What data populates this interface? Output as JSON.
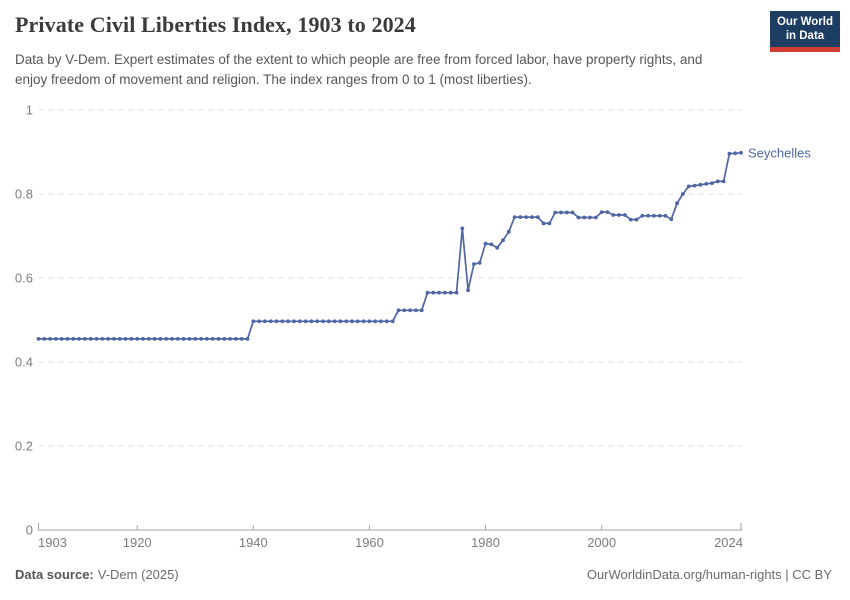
{
  "header": {
    "title": "Private Civil Liberties Index, 1903 to 2024",
    "subtitle": "Data by V-Dem. Expert estimates of the extent to which people are free from forced labor, have property rights, and enjoy freedom of movement and religion. The index ranges from 0 to 1 (most liberties)."
  },
  "logo": {
    "line1": "Our World",
    "line2": "in Data",
    "bg_color": "#1d3d63",
    "accent_color": "#d13d33"
  },
  "footer": {
    "source_label": "Data source:",
    "source_value": "V-Dem (2025)",
    "credit": "OurWorldinData.org/human-rights | CC BY"
  },
  "chart_data": {
    "type": "line",
    "title": "Private Civil Liberties Index, 1903 to 2024",
    "xlabel": "",
    "ylabel": "",
    "xlim": [
      1903,
      2024
    ],
    "ylim": [
      0,
      1
    ],
    "x_ticks": [
      1903,
      1920,
      1940,
      1960,
      1980,
      2000,
      2024
    ],
    "y_ticks": [
      0,
      0.2,
      0.4,
      0.6,
      0.8,
      1
    ],
    "grid": "dashed-horizontal",
    "legend_position": "end-of-line-label",
    "axis_color": "#a5a5a5",
    "grid_color": "#e0e0e0",
    "tick_label_color": "#7d7d7d",
    "series": [
      {
        "name": "Seychelles",
        "color": "#4e66a3",
        "points": [
          [
            1903,
            0.455
          ],
          [
            1904,
            0.455
          ],
          [
            1905,
            0.455
          ],
          [
            1906,
            0.455
          ],
          [
            1907,
            0.455
          ],
          [
            1908,
            0.455
          ],
          [
            1909,
            0.455
          ],
          [
            1910,
            0.455
          ],
          [
            1911,
            0.455
          ],
          [
            1912,
            0.455
          ],
          [
            1913,
            0.455
          ],
          [
            1914,
            0.455
          ],
          [
            1915,
            0.455
          ],
          [
            1916,
            0.455
          ],
          [
            1917,
            0.455
          ],
          [
            1918,
            0.455
          ],
          [
            1919,
            0.455
          ],
          [
            1920,
            0.455
          ],
          [
            1921,
            0.455
          ],
          [
            1922,
            0.455
          ],
          [
            1923,
            0.455
          ],
          [
            1924,
            0.455
          ],
          [
            1925,
            0.455
          ],
          [
            1926,
            0.455
          ],
          [
            1927,
            0.455
          ],
          [
            1928,
            0.455
          ],
          [
            1929,
            0.455
          ],
          [
            1930,
            0.455
          ],
          [
            1931,
            0.455
          ],
          [
            1932,
            0.455
          ],
          [
            1933,
            0.455
          ],
          [
            1934,
            0.455
          ],
          [
            1935,
            0.455
          ],
          [
            1936,
            0.455
          ],
          [
            1937,
            0.455
          ],
          [
            1938,
            0.455
          ],
          [
            1939,
            0.455
          ],
          [
            1940,
            0.497
          ],
          [
            1941,
            0.497
          ],
          [
            1942,
            0.497
          ],
          [
            1943,
            0.497
          ],
          [
            1944,
            0.497
          ],
          [
            1945,
            0.497
          ],
          [
            1946,
            0.497
          ],
          [
            1947,
            0.497
          ],
          [
            1948,
            0.497
          ],
          [
            1949,
            0.497
          ],
          [
            1950,
            0.497
          ],
          [
            1951,
            0.497
          ],
          [
            1952,
            0.497
          ],
          [
            1953,
            0.497
          ],
          [
            1954,
            0.497
          ],
          [
            1955,
            0.497
          ],
          [
            1956,
            0.497
          ],
          [
            1957,
            0.497
          ],
          [
            1958,
            0.497
          ],
          [
            1959,
            0.497
          ],
          [
            1960,
            0.497
          ],
          [
            1961,
            0.497
          ],
          [
            1962,
            0.497
          ],
          [
            1963,
            0.497
          ],
          [
            1964,
            0.497
          ],
          [
            1965,
            0.523
          ],
          [
            1966,
            0.523
          ],
          [
            1967,
            0.523
          ],
          [
            1968,
            0.523
          ],
          [
            1969,
            0.523
          ],
          [
            1970,
            0.565
          ],
          [
            1971,
            0.565
          ],
          [
            1972,
            0.565
          ],
          [
            1973,
            0.565
          ],
          [
            1974,
            0.565
          ],
          [
            1975,
            0.565
          ],
          [
            1976,
            0.718
          ],
          [
            1977,
            0.571
          ],
          [
            1978,
            0.633
          ],
          [
            1979,
            0.636
          ],
          [
            1980,
            0.682
          ],
          [
            1981,
            0.68
          ],
          [
            1982,
            0.672
          ],
          [
            1983,
            0.69
          ],
          [
            1984,
            0.71
          ],
          [
            1985,
            0.745
          ],
          [
            1986,
            0.745
          ],
          [
            1987,
            0.745
          ],
          [
            1988,
            0.745
          ],
          [
            1989,
            0.745
          ],
          [
            1990,
            0.73
          ],
          [
            1991,
            0.73
          ],
          [
            1992,
            0.756
          ],
          [
            1993,
            0.756
          ],
          [
            1994,
            0.756
          ],
          [
            1995,
            0.756
          ],
          [
            1996,
            0.744
          ],
          [
            1997,
            0.744
          ],
          [
            1998,
            0.744
          ],
          [
            1999,
            0.744
          ],
          [
            2000,
            0.757
          ],
          [
            2001,
            0.757
          ],
          [
            2002,
            0.75
          ],
          [
            2003,
            0.75
          ],
          [
            2004,
            0.75
          ],
          [
            2005,
            0.739
          ],
          [
            2006,
            0.739
          ],
          [
            2007,
            0.748
          ],
          [
            2008,
            0.748
          ],
          [
            2009,
            0.748
          ],
          [
            2010,
            0.748
          ],
          [
            2011,
            0.748
          ],
          [
            2012,
            0.74
          ],
          [
            2013,
            0.778
          ],
          [
            2014,
            0.8
          ],
          [
            2015,
            0.818
          ],
          [
            2016,
            0.82
          ],
          [
            2017,
            0.822
          ],
          [
            2018,
            0.824
          ],
          [
            2019,
            0.826
          ],
          [
            2020,
            0.83
          ],
          [
            2021,
            0.83
          ],
          [
            2022,
            0.896
          ],
          [
            2023,
            0.897
          ],
          [
            2024,
            0.898
          ]
        ]
      }
    ]
  }
}
